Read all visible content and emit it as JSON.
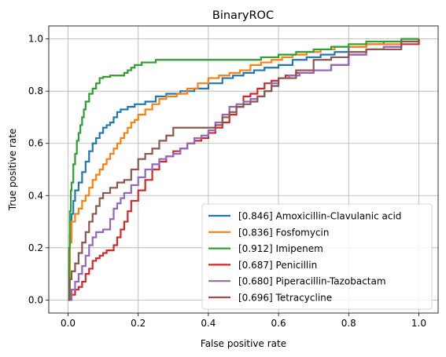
{
  "chart_data": {
    "type": "line",
    "title": "BinaryROC",
    "xlabel": "False positive rate",
    "ylabel": "True positive rate",
    "xlim": [
      -0.055,
      1.055
    ],
    "ylim": [
      -0.05,
      1.05
    ],
    "xticks": [
      "0.0",
      "0.2",
      "0.4",
      "0.6",
      "0.8",
      "1.0"
    ],
    "yticks": [
      "0.0",
      "0.2",
      "0.4",
      "0.6",
      "0.8",
      "1.0"
    ],
    "grid": true,
    "legend_position": "lower-right",
    "series": [
      {
        "name": "[0.846] Amoxicillin-Clavulanic acid",
        "color": "#1f77b4",
        "points": [
          [
            0,
            0
          ],
          [
            0.003,
            0.12
          ],
          [
            0.005,
            0.25
          ],
          [
            0.01,
            0.33
          ],
          [
            0.015,
            0.38
          ],
          [
            0.02,
            0.42
          ],
          [
            0.03,
            0.45
          ],
          [
            0.04,
            0.49
          ],
          [
            0.05,
            0.53
          ],
          [
            0.06,
            0.57
          ],
          [
            0.07,
            0.6
          ],
          [
            0.08,
            0.62
          ],
          [
            0.09,
            0.64
          ],
          [
            0.1,
            0.66
          ],
          [
            0.11,
            0.67
          ],
          [
            0.12,
            0.68
          ],
          [
            0.13,
            0.7
          ],
          [
            0.14,
            0.72
          ],
          [
            0.15,
            0.73
          ],
          [
            0.17,
            0.74
          ],
          [
            0.19,
            0.75
          ],
          [
            0.22,
            0.76
          ],
          [
            0.25,
            0.78
          ],
          [
            0.28,
            0.79
          ],
          [
            0.32,
            0.8
          ],
          [
            0.36,
            0.81
          ],
          [
            0.4,
            0.83
          ],
          [
            0.44,
            0.85
          ],
          [
            0.47,
            0.86
          ],
          [
            0.5,
            0.87
          ],
          [
            0.53,
            0.88
          ],
          [
            0.56,
            0.89
          ],
          [
            0.6,
            0.9
          ],
          [
            0.64,
            0.92
          ],
          [
            0.68,
            0.93
          ],
          [
            0.72,
            0.94
          ],
          [
            0.76,
            0.95
          ],
          [
            0.8,
            0.97
          ],
          [
            0.85,
            0.98
          ],
          [
            0.9,
            0.99
          ],
          [
            0.95,
            0.99
          ],
          [
            1.0,
            1.0
          ]
        ]
      },
      {
        "name": "[0.836] Fosfomycin",
        "color": "#ff7f0e",
        "points": [
          [
            0,
            0
          ],
          [
            0.005,
            0.22
          ],
          [
            0.01,
            0.3
          ],
          [
            0.02,
            0.33
          ],
          [
            0.03,
            0.35
          ],
          [
            0.04,
            0.38
          ],
          [
            0.05,
            0.4
          ],
          [
            0.06,
            0.43
          ],
          [
            0.07,
            0.46
          ],
          [
            0.08,
            0.48
          ],
          [
            0.09,
            0.5
          ],
          [
            0.1,
            0.52
          ],
          [
            0.11,
            0.54
          ],
          [
            0.12,
            0.56
          ],
          [
            0.13,
            0.58
          ],
          [
            0.14,
            0.6
          ],
          [
            0.15,
            0.62
          ],
          [
            0.16,
            0.64
          ],
          [
            0.17,
            0.66
          ],
          [
            0.18,
            0.68
          ],
          [
            0.19,
            0.69
          ],
          [
            0.2,
            0.71
          ],
          [
            0.22,
            0.73
          ],
          [
            0.24,
            0.75
          ],
          [
            0.26,
            0.77
          ],
          [
            0.28,
            0.78
          ],
          [
            0.31,
            0.79
          ],
          [
            0.34,
            0.81
          ],
          [
            0.37,
            0.83
          ],
          [
            0.4,
            0.85
          ],
          [
            0.43,
            0.86
          ],
          [
            0.46,
            0.87
          ],
          [
            0.49,
            0.88
          ],
          [
            0.52,
            0.9
          ],
          [
            0.55,
            0.91
          ],
          [
            0.58,
            0.92
          ],
          [
            0.61,
            0.93
          ],
          [
            0.64,
            0.94
          ],
          [
            0.68,
            0.95
          ],
          [
            0.72,
            0.96
          ],
          [
            0.76,
            0.97
          ],
          [
            0.8,
            0.97
          ],
          [
            0.85,
            0.98
          ],
          [
            0.9,
            0.98
          ],
          [
            0.95,
            0.99
          ],
          [
            1.0,
            1.0
          ]
        ]
      },
      {
        "name": "[0.912] Imipenem",
        "color": "#2ca02c",
        "points": [
          [
            0,
            0
          ],
          [
            0.003,
            0.2
          ],
          [
            0.005,
            0.34
          ],
          [
            0.008,
            0.42
          ],
          [
            0.01,
            0.45
          ],
          [
            0.015,
            0.52
          ],
          [
            0.02,
            0.56
          ],
          [
            0.025,
            0.61
          ],
          [
            0.03,
            0.64
          ],
          [
            0.035,
            0.67
          ],
          [
            0.04,
            0.7
          ],
          [
            0.045,
            0.73
          ],
          [
            0.05,
            0.76
          ],
          [
            0.06,
            0.79
          ],
          [
            0.07,
            0.81
          ],
          [
            0.08,
            0.83
          ],
          [
            0.09,
            0.85
          ],
          [
            0.1,
            0.855
          ],
          [
            0.12,
            0.86
          ],
          [
            0.14,
            0.86
          ],
          [
            0.16,
            0.87
          ],
          [
            0.17,
            0.88
          ],
          [
            0.18,
            0.89
          ],
          [
            0.19,
            0.9
          ],
          [
            0.21,
            0.91
          ],
          [
            0.25,
            0.92
          ],
          [
            0.3,
            0.92
          ],
          [
            0.4,
            0.92
          ],
          [
            0.5,
            0.92
          ],
          [
            0.55,
            0.93
          ],
          [
            0.6,
            0.94
          ],
          [
            0.65,
            0.95
          ],
          [
            0.7,
            0.96
          ],
          [
            0.75,
            0.97
          ],
          [
            0.8,
            0.98
          ],
          [
            0.85,
            0.99
          ],
          [
            0.9,
            0.99
          ],
          [
            0.95,
            1.0
          ],
          [
            1.0,
            1.0
          ]
        ]
      },
      {
        "name": "[0.687] Penicillin",
        "color": "#d62728",
        "points": [
          [
            0,
            0
          ],
          [
            0.01,
            0.02
          ],
          [
            0.02,
            0.04
          ],
          [
            0.03,
            0.05
          ],
          [
            0.04,
            0.07
          ],
          [
            0.05,
            0.1
          ],
          [
            0.06,
            0.12
          ],
          [
            0.07,
            0.15
          ],
          [
            0.08,
            0.16
          ],
          [
            0.09,
            0.17
          ],
          [
            0.1,
            0.18
          ],
          [
            0.11,
            0.19
          ],
          [
            0.13,
            0.21
          ],
          [
            0.14,
            0.24
          ],
          [
            0.15,
            0.27
          ],
          [
            0.16,
            0.3
          ],
          [
            0.17,
            0.34
          ],
          [
            0.18,
            0.38
          ],
          [
            0.2,
            0.42
          ],
          [
            0.22,
            0.46
          ],
          [
            0.24,
            0.5
          ],
          [
            0.26,
            0.53
          ],
          [
            0.28,
            0.55
          ],
          [
            0.3,
            0.57
          ],
          [
            0.32,
            0.58
          ],
          [
            0.34,
            0.6
          ],
          [
            0.36,
            0.61
          ],
          [
            0.38,
            0.62
          ],
          [
            0.4,
            0.64
          ],
          [
            0.42,
            0.66
          ],
          [
            0.44,
            0.68
          ],
          [
            0.46,
            0.71
          ],
          [
            0.48,
            0.74
          ],
          [
            0.5,
            0.78
          ],
          [
            0.52,
            0.79
          ],
          [
            0.54,
            0.81
          ],
          [
            0.56,
            0.83
          ],
          [
            0.58,
            0.84
          ],
          [
            0.6,
            0.85
          ],
          [
            0.62,
            0.86
          ],
          [
            0.65,
            0.87
          ],
          [
            0.7,
            0.88
          ],
          [
            0.75,
            0.9
          ],
          [
            0.8,
            0.94
          ],
          [
            0.85,
            0.96
          ],
          [
            0.9,
            0.97
          ],
          [
            0.95,
            0.98
          ],
          [
            1.0,
            1.0
          ]
        ]
      },
      {
        "name": "[0.680] Piperacillin-Tazobactam",
        "color": "#9467bd",
        "points": [
          [
            0,
            0
          ],
          [
            0.01,
            0.04
          ],
          [
            0.02,
            0.07
          ],
          [
            0.03,
            0.1
          ],
          [
            0.04,
            0.13
          ],
          [
            0.05,
            0.17
          ],
          [
            0.06,
            0.21
          ],
          [
            0.07,
            0.24
          ],
          [
            0.08,
            0.26
          ],
          [
            0.1,
            0.27
          ],
          [
            0.12,
            0.31
          ],
          [
            0.13,
            0.35
          ],
          [
            0.14,
            0.37
          ],
          [
            0.15,
            0.39
          ],
          [
            0.16,
            0.41
          ],
          [
            0.18,
            0.44
          ],
          [
            0.2,
            0.47
          ],
          [
            0.22,
            0.5
          ],
          [
            0.24,
            0.52
          ],
          [
            0.26,
            0.54
          ],
          [
            0.28,
            0.55
          ],
          [
            0.3,
            0.56
          ],
          [
            0.32,
            0.58
          ],
          [
            0.34,
            0.6
          ],
          [
            0.36,
            0.62
          ],
          [
            0.38,
            0.63
          ],
          [
            0.4,
            0.65
          ],
          [
            0.42,
            0.68
          ],
          [
            0.44,
            0.71
          ],
          [
            0.46,
            0.74
          ],
          [
            0.48,
            0.75
          ],
          [
            0.5,
            0.76
          ],
          [
            0.52,
            0.77
          ],
          [
            0.54,
            0.78
          ],
          [
            0.56,
            0.8
          ],
          [
            0.58,
            0.83
          ],
          [
            0.6,
            0.85
          ],
          [
            0.63,
            0.86
          ],
          [
            0.66,
            0.87
          ],
          [
            0.7,
            0.88
          ],
          [
            0.75,
            0.9
          ],
          [
            0.8,
            0.94
          ],
          [
            0.85,
            0.96
          ],
          [
            0.9,
            0.97
          ],
          [
            0.95,
            0.99
          ],
          [
            1.0,
            1.0
          ]
        ]
      },
      {
        "name": "[0.696] Tetracycline",
        "color": "#8c564b",
        "points": [
          [
            0,
            0
          ],
          [
            0.005,
            0.08
          ],
          [
            0.01,
            0.11
          ],
          [
            0.02,
            0.14
          ],
          [
            0.03,
            0.18
          ],
          [
            0.04,
            0.22
          ],
          [
            0.05,
            0.26
          ],
          [
            0.06,
            0.3
          ],
          [
            0.07,
            0.33
          ],
          [
            0.08,
            0.36
          ],
          [
            0.09,
            0.39
          ],
          [
            0.1,
            0.41
          ],
          [
            0.12,
            0.43
          ],
          [
            0.14,
            0.45
          ],
          [
            0.16,
            0.46
          ],
          [
            0.18,
            0.5
          ],
          [
            0.2,
            0.54
          ],
          [
            0.22,
            0.56
          ],
          [
            0.24,
            0.58
          ],
          [
            0.26,
            0.61
          ],
          [
            0.28,
            0.63
          ],
          [
            0.3,
            0.66
          ],
          [
            0.35,
            0.66
          ],
          [
            0.4,
            0.66
          ],
          [
            0.42,
            0.67
          ],
          [
            0.44,
            0.7
          ],
          [
            0.46,
            0.72
          ],
          [
            0.48,
            0.74
          ],
          [
            0.5,
            0.75
          ],
          [
            0.52,
            0.76
          ],
          [
            0.54,
            0.78
          ],
          [
            0.56,
            0.8
          ],
          [
            0.58,
            0.82
          ],
          [
            0.6,
            0.85
          ],
          [
            0.65,
            0.88
          ],
          [
            0.7,
            0.92
          ],
          [
            0.75,
            0.93
          ],
          [
            0.8,
            0.95
          ],
          [
            0.85,
            0.96
          ],
          [
            0.9,
            0.96
          ],
          [
            0.95,
            0.99
          ],
          [
            1.0,
            1.0
          ]
        ]
      }
    ]
  }
}
